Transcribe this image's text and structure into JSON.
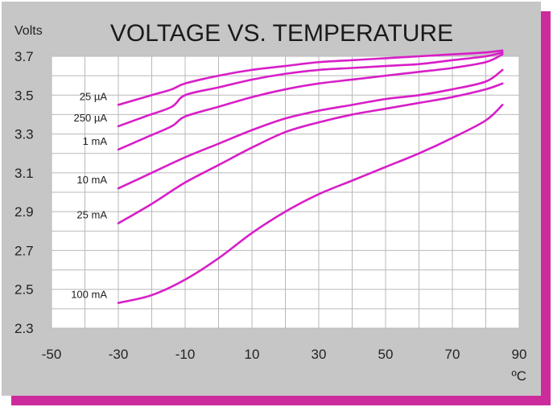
{
  "chart_data": {
    "type": "line",
    "title": "VOLTAGE VS. TEMPERATURE",
    "ylabel": "Volts",
    "xunit": "ºC",
    "xlim": [
      -50,
      90
    ],
    "ylim": [
      2.3,
      3.7
    ],
    "xticks": [
      -50,
      -30,
      -10,
      10,
      30,
      50,
      70,
      90
    ],
    "yticks": [
      "2.3",
      "2.5",
      "2.7",
      "2.9",
      "3.1",
      "3.3",
      "3.5",
      "3.7"
    ],
    "grid": true,
    "line_color": "#d81ec8",
    "series": [
      {
        "name": "25 µA",
        "points": [
          [
            -30,
            3.45
          ],
          [
            -20,
            3.5
          ],
          [
            -14,
            3.53
          ],
          [
            -10,
            3.56
          ],
          [
            0,
            3.6
          ],
          [
            10,
            3.63
          ],
          [
            20,
            3.65
          ],
          [
            30,
            3.67
          ],
          [
            40,
            3.68
          ],
          [
            50,
            3.69
          ],
          [
            60,
            3.7
          ],
          [
            70,
            3.71
          ],
          [
            80,
            3.72
          ],
          [
            85,
            3.73
          ]
        ]
      },
      {
        "name": "250 µA",
        "points": [
          [
            -30,
            3.34
          ],
          [
            -22,
            3.39
          ],
          [
            -14,
            3.44
          ],
          [
            -10,
            3.5
          ],
          [
            0,
            3.54
          ],
          [
            10,
            3.58
          ],
          [
            20,
            3.61
          ],
          [
            30,
            3.63
          ],
          [
            40,
            3.64
          ],
          [
            50,
            3.65
          ],
          [
            60,
            3.66
          ],
          [
            70,
            3.68
          ],
          [
            80,
            3.7
          ],
          [
            85,
            3.72
          ]
        ]
      },
      {
        "name": "1 mA",
        "points": [
          [
            -30,
            3.22
          ],
          [
            -22,
            3.28
          ],
          [
            -14,
            3.34
          ],
          [
            -10,
            3.39
          ],
          [
            0,
            3.44
          ],
          [
            10,
            3.49
          ],
          [
            20,
            3.53
          ],
          [
            30,
            3.56
          ],
          [
            40,
            3.58
          ],
          [
            50,
            3.6
          ],
          [
            60,
            3.62
          ],
          [
            70,
            3.64
          ],
          [
            80,
            3.67
          ],
          [
            85,
            3.71
          ]
        ]
      },
      {
        "name": "10 mA",
        "points": [
          [
            -30,
            3.02
          ],
          [
            -20,
            3.1
          ],
          [
            -10,
            3.18
          ],
          [
            0,
            3.25
          ],
          [
            10,
            3.32
          ],
          [
            20,
            3.38
          ],
          [
            30,
            3.42
          ],
          [
            40,
            3.45
          ],
          [
            50,
            3.48
          ],
          [
            60,
            3.5
          ],
          [
            70,
            3.53
          ],
          [
            80,
            3.57
          ],
          [
            85,
            3.63
          ]
        ]
      },
      {
        "name": "25 mA",
        "points": [
          [
            -30,
            2.84
          ],
          [
            -20,
            2.94
          ],
          [
            -10,
            3.05
          ],
          [
            0,
            3.14
          ],
          [
            10,
            3.23
          ],
          [
            20,
            3.31
          ],
          [
            30,
            3.36
          ],
          [
            40,
            3.4
          ],
          [
            50,
            3.43
          ],
          [
            60,
            3.46
          ],
          [
            70,
            3.49
          ],
          [
            80,
            3.53
          ],
          [
            85,
            3.56
          ]
        ]
      },
      {
        "name": "100 mA",
        "points": [
          [
            -30,
            2.43
          ],
          [
            -20,
            2.47
          ],
          [
            -10,
            2.55
          ],
          [
            0,
            2.66
          ],
          [
            10,
            2.79
          ],
          [
            20,
            2.9
          ],
          [
            30,
            2.99
          ],
          [
            40,
            3.06
          ],
          [
            50,
            3.13
          ],
          [
            60,
            3.2
          ],
          [
            70,
            3.28
          ],
          [
            80,
            3.37
          ],
          [
            85,
            3.45
          ]
        ]
      }
    ]
  }
}
